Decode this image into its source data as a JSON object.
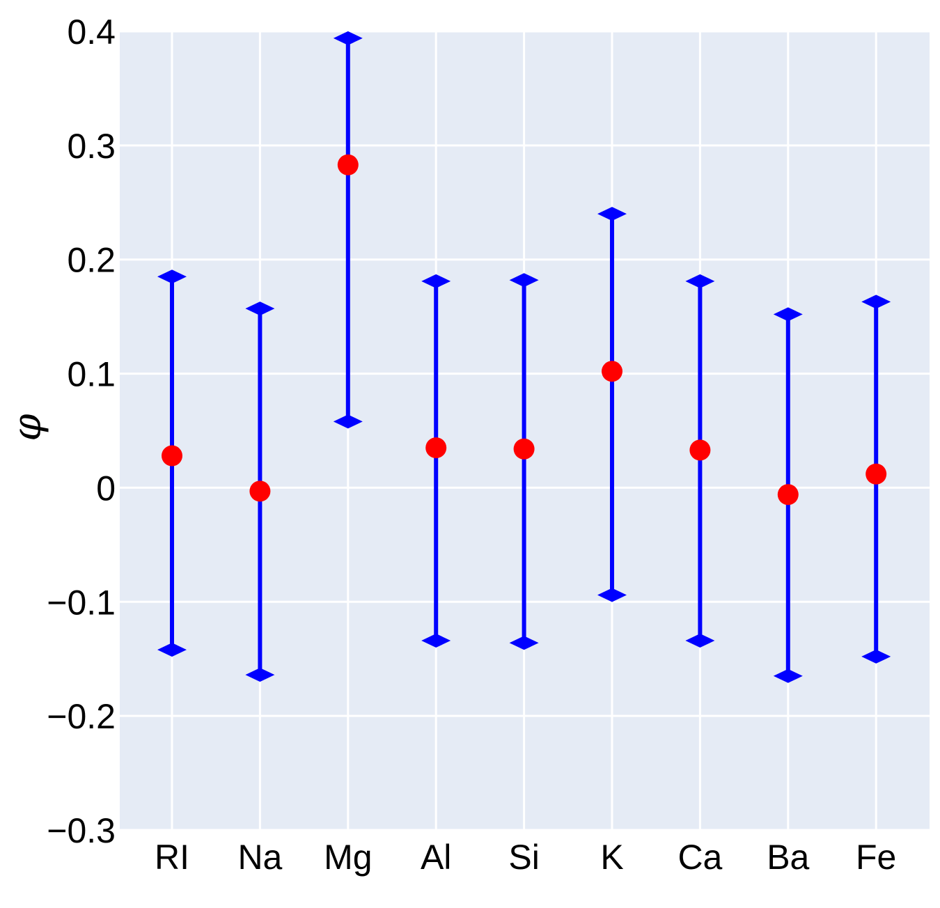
{
  "chart_data": {
    "type": "errorbar",
    "title": "",
    "xlabel": "",
    "ylabel": "φ",
    "ylim": [
      -0.3,
      0.4
    ],
    "yticks": [
      0.4,
      0.3,
      0.2,
      0.1,
      0,
      -0.1,
      -0.2,
      -0.3
    ],
    "ytick_labels": [
      "0.4",
      "0.3",
      "0.2",
      "0.1",
      "0",
      "−0.1",
      "−0.2",
      "−0.3"
    ],
    "grid": true,
    "categories": [
      "RI",
      "Na",
      "Mg",
      "Al",
      "Si",
      "K",
      "Ca",
      "Ba",
      "Fe"
    ],
    "values": [
      0.028,
      -0.003,
      0.283,
      0.035,
      0.034,
      0.102,
      0.033,
      -0.006,
      0.012
    ],
    "lower": [
      -0.142,
      -0.164,
      0.058,
      -0.134,
      -0.136,
      -0.094,
      -0.134,
      -0.165,
      -0.148
    ],
    "upper": [
      0.185,
      0.157,
      0.394,
      0.181,
      0.182,
      0.24,
      0.181,
      0.152,
      0.163
    ],
    "colors": {
      "point": "#ff0000",
      "errorbar": "#0000ff",
      "plot_background": "#e5ebf5",
      "grid": "#ffffff"
    }
  }
}
